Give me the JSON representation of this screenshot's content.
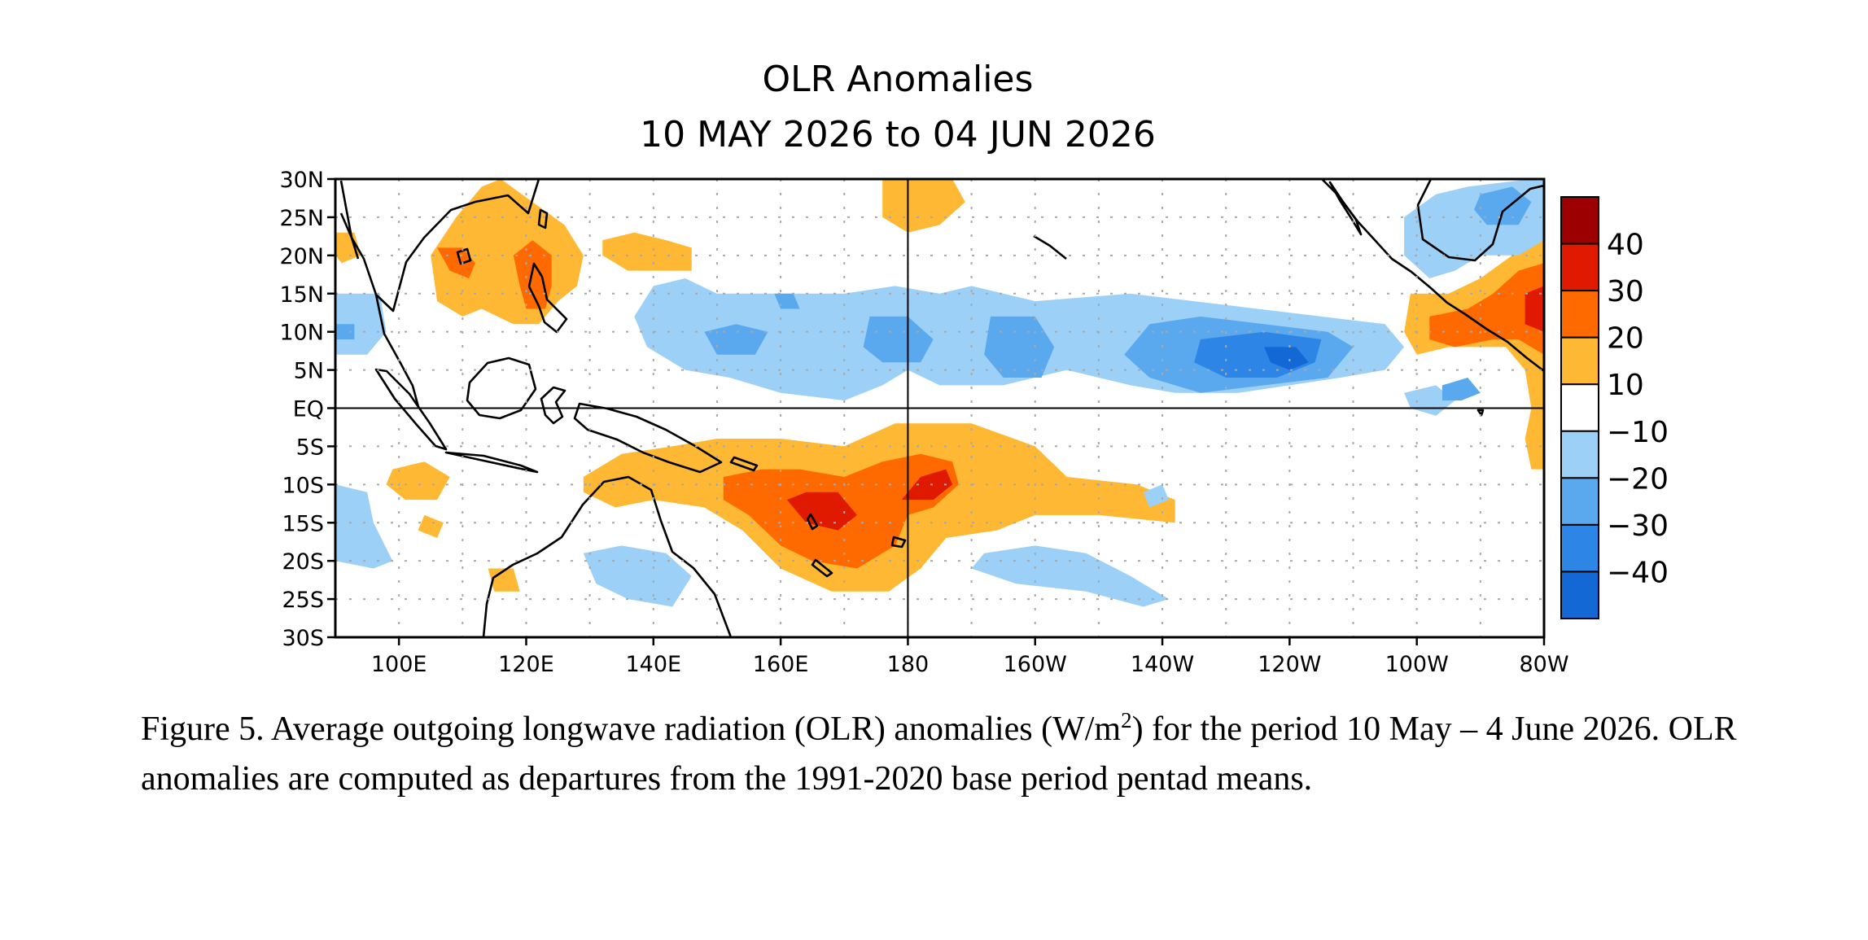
{
  "title": {
    "line1": "OLR Anomalies",
    "line2": "10 MAY 2026 to 04 JUN 2026"
  },
  "map": {
    "lon_range": [
      90,
      280
    ],
    "lat_range": [
      -30,
      30
    ],
    "lat_labels": [
      {
        "lat": 30,
        "label": "30N"
      },
      {
        "lat": 25,
        "label": "25N"
      },
      {
        "lat": 20,
        "label": "20N"
      },
      {
        "lat": 15,
        "label": "15N"
      },
      {
        "lat": 10,
        "label": "10N"
      },
      {
        "lat": 5,
        "label": "5N"
      },
      {
        "lat": 0,
        "label": "EQ"
      },
      {
        "lat": -5,
        "label": "5S"
      },
      {
        "lat": -10,
        "label": "10S"
      },
      {
        "lat": -15,
        "label": "15S"
      },
      {
        "lat": -20,
        "label": "20S"
      },
      {
        "lat": -25,
        "label": "25S"
      },
      {
        "lat": -30,
        "label": "30S"
      }
    ],
    "lon_labels": [
      {
        "lon": 100,
        "label": "100E"
      },
      {
        "lon": 120,
        "label": "120E"
      },
      {
        "lon": 140,
        "label": "140E"
      },
      {
        "lon": 160,
        "label": "160E"
      },
      {
        "lon": 180,
        "label": "180"
      },
      {
        "lon": 200,
        "label": "160W"
      },
      {
        "lon": 220,
        "label": "140W"
      },
      {
        "lon": 240,
        "label": "120W"
      },
      {
        "lon": 260,
        "label": "100W"
      },
      {
        "lon": 280,
        "label": "80W"
      }
    ],
    "reference_lines": {
      "equator_lat": 0,
      "dateline_lon": 180
    },
    "grid": "dotted"
  },
  "colorbar": {
    "labels": [
      "40",
      "30",
      "20",
      "10",
      "−10",
      "−20",
      "−30",
      "−40"
    ],
    "colors": [
      "#9c0000",
      "#e01a00",
      "#ff6a00",
      "#ffb833",
      "#ffffff",
      "#9dd0f7",
      "#5aa9ef",
      "#2d86e6",
      "#1468d6"
    ]
  },
  "anomaly_regions": [
    {
      "level": 10,
      "points": [
        [
          113,
          29
        ],
        [
          109,
          25
        ],
        [
          105,
          20
        ],
        [
          106,
          14
        ],
        [
          110,
          12
        ],
        [
          113,
          13
        ],
        [
          118,
          11
        ],
        [
          122,
          11
        ],
        [
          125,
          14
        ],
        [
          128,
          16
        ],
        [
          129,
          20
        ],
        [
          126,
          24
        ],
        [
          121,
          27
        ],
        [
          116,
          30
        ]
      ]
    },
    {
      "level": 20,
      "points": [
        [
          106,
          21
        ],
        [
          108,
          18
        ],
        [
          111,
          17
        ],
        [
          112,
          19
        ],
        [
          110,
          21
        ]
      ]
    },
    {
      "level": 20,
      "points": [
        [
          118,
          20
        ],
        [
          119,
          16
        ],
        [
          120,
          13
        ],
        [
          123,
          13
        ],
        [
          124,
          16
        ],
        [
          124,
          20
        ],
        [
          121,
          22
        ]
      ]
    },
    {
      "level": 10,
      "points": [
        [
          90,
          23
        ],
        [
          93,
          23
        ],
        [
          94,
          20
        ],
        [
          91,
          19
        ],
        [
          90,
          20
        ]
      ]
    },
    {
      "level": 10,
      "points": [
        [
          132,
          22
        ],
        [
          137,
          23
        ],
        [
          142,
          22
        ],
        [
          146,
          21
        ],
        [
          146,
          18
        ],
        [
          142,
          18
        ],
        [
          136,
          18
        ],
        [
          132,
          20
        ]
      ]
    },
    {
      "level": 10,
      "points": [
        [
          176,
          30
        ],
        [
          187,
          30
        ],
        [
          189,
          27
        ],
        [
          185,
          24
        ],
        [
          180,
          23
        ],
        [
          176,
          25
        ]
      ]
    },
    {
      "level": 10,
      "points": [
        [
          259,
          15
        ],
        [
          265,
          15
        ],
        [
          270,
          17
        ],
        [
          275,
          20
        ],
        [
          280,
          22
        ],
        [
          280,
          -8
        ],
        [
          278,
          -8
        ],
        [
          277,
          -4
        ],
        [
          278,
          0
        ],
        [
          277,
          5
        ],
        [
          274,
          8
        ],
        [
          270,
          8
        ],
        [
          265,
          8
        ],
        [
          260,
          7
        ],
        [
          258,
          10
        ]
      ]
    },
    {
      "level": 20,
      "points": [
        [
          262,
          12
        ],
        [
          268,
          13
        ],
        [
          272,
          15
        ],
        [
          276,
          18
        ],
        [
          280,
          19
        ],
        [
          280,
          7
        ],
        [
          276,
          9
        ],
        [
          272,
          9
        ],
        [
          266,
          8
        ],
        [
          262,
          9
        ]
      ]
    },
    {
      "level": 30,
      "points": [
        [
          277,
          15
        ],
        [
          280,
          16
        ],
        [
          280,
          10
        ],
        [
          277,
          11
        ]
      ]
    },
    {
      "level": 10,
      "points": [
        [
          129,
          -9
        ],
        [
          135,
          -6
        ],
        [
          143,
          -5
        ],
        [
          150,
          -4
        ],
        [
          160,
          -4
        ],
        [
          170,
          -5
        ],
        [
          178,
          -2
        ],
        [
          190,
          -2
        ],
        [
          200,
          -5
        ],
        [
          205,
          -9
        ],
        [
          216,
          -10
        ],
        [
          222,
          -12
        ],
        [
          222,
          -15
        ],
        [
          210,
          -14
        ],
        [
          200,
          -14
        ],
        [
          194,
          -16
        ],
        [
          186,
          -17
        ],
        [
          182,
          -21
        ],
        [
          177,
          -24
        ],
        [
          168,
          -24
        ],
        [
          160,
          -21
        ],
        [
          154,
          -16
        ],
        [
          148,
          -13
        ],
        [
          140,
          -12
        ],
        [
          134,
          -13
        ],
        [
          129,
          -11
        ]
      ]
    },
    {
      "level": 20,
      "points": [
        [
          151,
          -9
        ],
        [
          157,
          -8
        ],
        [
          163,
          -8
        ],
        [
          170,
          -9
        ],
        [
          176,
          -7
        ],
        [
          182,
          -6
        ],
        [
          187,
          -7
        ],
        [
          188,
          -10
        ],
        [
          184,
          -13
        ],
        [
          180,
          -14
        ],
        [
          178,
          -18
        ],
        [
          172,
          -21
        ],
        [
          165,
          -20
        ],
        [
          160,
          -18
        ],
        [
          155,
          -14
        ],
        [
          151,
          -12
        ]
      ]
    },
    {
      "level": 30,
      "points": [
        [
          161,
          -12
        ],
        [
          164,
          -11
        ],
        [
          169,
          -11
        ],
        [
          172,
          -14
        ],
        [
          169,
          -16
        ],
        [
          164,
          -15
        ]
      ]
    },
    {
      "level": 30,
      "points": [
        [
          179,
          -12
        ],
        [
          182,
          -9
        ],
        [
          186,
          -8
        ],
        [
          187,
          -10
        ],
        [
          184,
          -12
        ]
      ]
    },
    {
      "level": 10,
      "points": [
        [
          99,
          -8
        ],
        [
          104,
          -7
        ],
        [
          108,
          -9
        ],
        [
          106,
          -12
        ],
        [
          101,
          -12
        ],
        [
          98,
          -10
        ]
      ]
    },
    {
      "level": 10,
      "points": [
        [
          104,
          -14
        ],
        [
          107,
          -15
        ],
        [
          106,
          -17
        ],
        [
          103,
          -16
        ]
      ]
    },
    {
      "level": 10,
      "points": [
        [
          114,
          -21
        ],
        [
          118,
          -21
        ],
        [
          119,
          -24
        ],
        [
          115,
          -24
        ]
      ]
    },
    {
      "level": -10,
      "points": [
        [
          140,
          16
        ],
        [
          145,
          17
        ],
        [
          150,
          15
        ],
        [
          160,
          15
        ],
        [
          170,
          15
        ],
        [
          178,
          16
        ],
        [
          185,
          15
        ],
        [
          190,
          16
        ],
        [
          200,
          14
        ],
        [
          215,
          15
        ],
        [
          225,
          14
        ],
        [
          235,
          13
        ],
        [
          245,
          12
        ],
        [
          255,
          11
        ],
        [
          258,
          8
        ],
        [
          255,
          5
        ],
        [
          248,
          4
        ],
        [
          240,
          3
        ],
        [
          232,
          2
        ],
        [
          222,
          2
        ],
        [
          215,
          3
        ],
        [
          205,
          5
        ],
        [
          195,
          3
        ],
        [
          185,
          3
        ],
        [
          180,
          5
        ],
        [
          176,
          3
        ],
        [
          170,
          1
        ],
        [
          160,
          2
        ],
        [
          152,
          4
        ],
        [
          145,
          5
        ],
        [
          139,
          8
        ],
        [
          137,
          12
        ]
      ]
    },
    {
      "level": -20,
      "points": [
        [
          148,
          10
        ],
        [
          153,
          11
        ],
        [
          158,
          10
        ],
        [
          156,
          7
        ],
        [
          150,
          7
        ]
      ]
    },
    {
      "level": -20,
      "points": [
        [
          174,
          12
        ],
        [
          180,
          12
        ],
        [
          184,
          9
        ],
        [
          182,
          6
        ],
        [
          176,
          6
        ],
        [
          173,
          8
        ]
      ]
    },
    {
      "level": -20,
      "points": [
        [
          193,
          12
        ],
        [
          200,
          12
        ],
        [
          203,
          8
        ],
        [
          201,
          4
        ],
        [
          195,
          4
        ],
        [
          192,
          7
        ]
      ]
    },
    {
      "level": -20,
      "points": [
        [
          218,
          11
        ],
        [
          226,
          12
        ],
        [
          236,
          11
        ],
        [
          246,
          10
        ],
        [
          250,
          8
        ],
        [
          246,
          4
        ],
        [
          236,
          3
        ],
        [
          226,
          2
        ],
        [
          218,
          4
        ],
        [
          214,
          7
        ]
      ]
    },
    {
      "level": -30,
      "points": [
        [
          226,
          9
        ],
        [
          236,
          10
        ],
        [
          245,
          9
        ],
        [
          244,
          6
        ],
        [
          238,
          4
        ],
        [
          230,
          4
        ],
        [
          225,
          6
        ]
      ]
    },
    {
      "level": -40,
      "points": [
        [
          236,
          8
        ],
        [
          241,
          8
        ],
        [
          243,
          6
        ],
        [
          240,
          5
        ],
        [
          237,
          6
        ]
      ]
    },
    {
      "level": -20,
      "points": [
        [
          159,
          15
        ],
        [
          162,
          15
        ],
        [
          163,
          13
        ],
        [
          160,
          13
        ]
      ]
    },
    {
      "level": -10,
      "points": [
        [
          90,
          15
        ],
        [
          97,
          15
        ],
        [
          98,
          10
        ],
        [
          95,
          7
        ],
        [
          90,
          7
        ]
      ]
    },
    {
      "level": -20,
      "points": [
        [
          90,
          11
        ],
        [
          93,
          11
        ],
        [
          93,
          9
        ],
        [
          90,
          9
        ]
      ]
    },
    {
      "level": -10,
      "points": [
        [
          90,
          -10
        ],
        [
          95,
          -11
        ],
        [
          96,
          -15
        ],
        [
          99,
          -20
        ],
        [
          96,
          -21
        ],
        [
          90,
          -20
        ]
      ]
    },
    {
      "level": -10,
      "points": [
        [
          258,
          25
        ],
        [
          263,
          28
        ],
        [
          268,
          29
        ],
        [
          278,
          30
        ],
        [
          280,
          30
        ],
        [
          280,
          22
        ],
        [
          276,
          20
        ],
        [
          270,
          20
        ],
        [
          266,
          18
        ],
        [
          262,
          17
        ],
        [
          258,
          20
        ]
      ]
    },
    {
      "level": -20,
      "points": [
        [
          270,
          28
        ],
        [
          275,
          29
        ],
        [
          278,
          27
        ],
        [
          276,
          24
        ],
        [
          271,
          24
        ],
        [
          269,
          26
        ]
      ]
    },
    {
      "level": -10,
      "points": [
        [
          258,
          2
        ],
        [
          263,
          3
        ],
        [
          266,
          1
        ],
        [
          263,
          -1
        ],
        [
          259,
          0
        ]
      ]
    },
    {
      "level": -20,
      "points": [
        [
          264,
          3
        ],
        [
          268,
          4
        ],
        [
          270,
          2
        ],
        [
          267,
          1
        ],
        [
          264,
          1
        ]
      ]
    },
    {
      "level": -10,
      "points": [
        [
          129,
          -19
        ],
        [
          135,
          -18
        ],
        [
          142,
          -19
        ],
        [
          146,
          -22
        ],
        [
          143,
          -26
        ],
        [
          136,
          -25
        ],
        [
          131,
          -23
        ]
      ]
    },
    {
      "level": -10,
      "points": [
        [
          192,
          -19
        ],
        [
          200,
          -18
        ],
        [
          208,
          -19
        ],
        [
          215,
          -22
        ],
        [
          221,
          -25
        ],
        [
          217,
          -26
        ],
        [
          208,
          -24
        ],
        [
          197,
          -23
        ],
        [
          190,
          -21
        ]
      ]
    },
    {
      "level": -10,
      "points": [
        [
          217,
          -11
        ],
        [
          220,
          -10
        ],
        [
          221,
          -12
        ],
        [
          218,
          -13
        ]
      ]
    }
  ],
  "caption": {
    "text1": "Figure 5. Average outgoing longwave radiation (OLR) anomalies (W/m",
    "superscript": "2",
    "text2": ") for the period 10 May – 4 June 2026.  OLR anomalies are computed as departures from the 1991-2020 base period pentad means."
  }
}
